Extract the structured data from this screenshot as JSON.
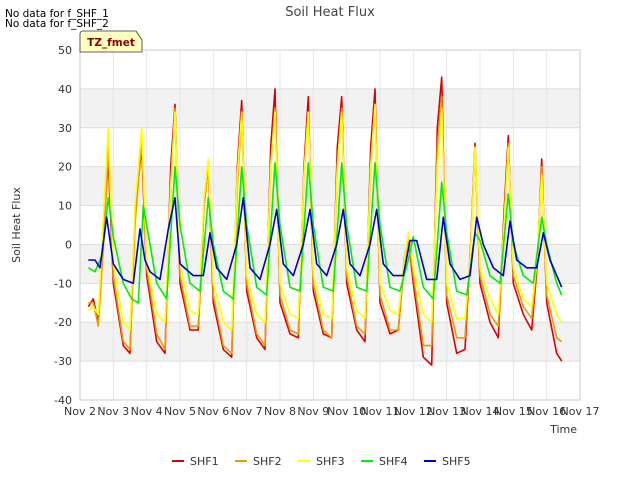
{
  "notes": [
    "No data for f_SHF_1",
    "No data for f_SHF_2"
  ],
  "chart_data": {
    "type": "line",
    "title": "Soil Heat Flux",
    "xlabel": "Time",
    "ylabel": "Soil Heat Flux",
    "badge": "TZ_fmet",
    "xlim": [
      2,
      17
    ],
    "ylim": [
      -40,
      50
    ],
    "xticks": [
      2,
      3,
      4,
      5,
      6,
      7,
      8,
      9,
      10,
      11,
      12,
      13,
      14,
      15,
      16,
      17
    ],
    "xtick_labels": [
      "Nov 2",
      "Nov 3",
      "Nov 4",
      "Nov 5",
      "Nov 6",
      "Nov 7",
      "Nov 8",
      "Nov 9",
      "Nov 10",
      "Nov 11",
      "Nov 12",
      "Nov 13",
      "Nov 14",
      "Nov 15",
      "Nov 16",
      "Nov 17"
    ],
    "yticks": [
      -40,
      -30,
      -20,
      -10,
      0,
      10,
      20,
      30,
      40,
      50
    ],
    "ytick_labels": [
      "-40",
      "-30",
      "-20",
      "-10",
      "0",
      "10",
      "20",
      "30",
      "40",
      "50"
    ],
    "grid": "horizontal bands",
    "legend_position": "bottom-center",
    "series": [
      {
        "name": "SHF1",
        "color": "#dd0000",
        "x": [
          2.25,
          2.4,
          2.55,
          2.72,
          2.85,
          3.0,
          3.3,
          3.5,
          3.65,
          3.85,
          4.0,
          4.3,
          4.55,
          4.72,
          4.85,
          5.0,
          5.3,
          5.55,
          5.72,
          5.85,
          6.0,
          6.3,
          6.55,
          6.72,
          6.85,
          7.0,
          7.3,
          7.55,
          7.72,
          7.85,
          8.0,
          8.3,
          8.55,
          8.72,
          8.85,
          9.0,
          9.3,
          9.55,
          9.72,
          9.85,
          10.0,
          10.3,
          10.55,
          10.72,
          10.85,
          11.0,
          11.3,
          11.55,
          11.72,
          11.85,
          12.0,
          12.3,
          12.55,
          12.72,
          12.85,
          13.0,
          13.3,
          13.55,
          13.72,
          13.85,
          14.0,
          14.3,
          14.55,
          14.72,
          14.85,
          15.0,
          15.3,
          15.55,
          15.72,
          15.85,
          16.0,
          16.3,
          16.45
        ],
        "y": [
          -16,
          -14,
          -20,
          5,
          22,
          -10,
          -26,
          -28,
          8,
          25,
          -8,
          -25,
          -28,
          20,
          36,
          -10,
          -22,
          -22,
          10,
          20,
          -15,
          -27,
          -29,
          20,
          37,
          -12,
          -24,
          -27,
          25,
          40,
          -15,
          -23,
          -24,
          20,
          38,
          -12,
          -23,
          -24,
          25,
          38,
          -10,
          -22,
          -25,
          25,
          40,
          -15,
          -23,
          -22,
          -5,
          2,
          -10,
          -29,
          -31,
          30,
          43,
          -15,
          -28,
          -27,
          0,
          26,
          -10,
          -20,
          -24,
          8,
          28,
          -10,
          -18,
          -22,
          -5,
          22,
          -15,
          -28,
          -30
        ]
      },
      {
        "name": "SHF2",
        "color": "#ee9900",
        "x": [
          2.25,
          2.4,
          2.55,
          2.72,
          2.85,
          3.0,
          3.3,
          3.5,
          3.65,
          3.85,
          4.0,
          4.3,
          4.55,
          4.72,
          4.85,
          5.0,
          5.3,
          5.55,
          5.72,
          5.85,
          6.0,
          6.3,
          6.55,
          6.72,
          6.85,
          7.0,
          7.3,
          7.55,
          7.72,
          7.85,
          8.0,
          8.3,
          8.55,
          8.72,
          8.85,
          9.0,
          9.3,
          9.55,
          9.72,
          9.85,
          10.0,
          10.3,
          10.55,
          10.72,
          10.85,
          11.0,
          11.3,
          11.55,
          11.72,
          11.85,
          12.0,
          12.3,
          12.55,
          12.72,
          12.85,
          13.0,
          13.3,
          13.55,
          13.72,
          13.85,
          14.0,
          14.3,
          14.55,
          14.72,
          14.85,
          15.0,
          15.3,
          15.55,
          15.72,
          15.85,
          16.0,
          16.3,
          16.45
        ],
        "y": [
          -15,
          -15,
          -21,
          2,
          25,
          -8,
          -25,
          -27,
          5,
          27,
          -6,
          -23,
          -27,
          15,
          35,
          -8,
          -21,
          -21,
          10,
          20,
          -13,
          -26,
          -28,
          15,
          33,
          -10,
          -23,
          -26,
          20,
          35,
          -13,
          -22,
          -23,
          18,
          34,
          -10,
          -22,
          -24,
          20,
          35,
          -8,
          -21,
          -23,
          20,
          36,
          -13,
          -22,
          -22,
          -4,
          2,
          -8,
          -26,
          -26,
          25,
          38,
          -13,
          -24,
          -24,
          0,
          25,
          -8,
          -18,
          -21,
          5,
          26,
          -8,
          -16,
          -19,
          -4,
          20,
          -13,
          -24,
          -25
        ]
      },
      {
        "name": "SHF3",
        "color": "#ffff00",
        "x": [
          2.25,
          2.4,
          2.55,
          2.72,
          2.85,
          3.0,
          3.3,
          3.5,
          3.65,
          3.85,
          4.0,
          4.3,
          4.55,
          4.72,
          4.85,
          5.0,
          5.3,
          5.55,
          5.72,
          5.85,
          6.0,
          6.3,
          6.55,
          6.72,
          6.85,
          7.0,
          7.3,
          7.55,
          7.72,
          7.85,
          8.0,
          8.3,
          8.55,
          8.72,
          8.85,
          9.0,
          9.3,
          9.55,
          9.72,
          9.85,
          10.0,
          10.3,
          10.55,
          10.72,
          10.85,
          11.0,
          11.3,
          11.55,
          11.72,
          11.85,
          12.0,
          12.3,
          12.55,
          12.72,
          12.85,
          13.0,
          13.3,
          13.55,
          13.72,
          13.85,
          14.0,
          14.3,
          14.55,
          14.72,
          14.85,
          15.0,
          15.3,
          15.55,
          15.72,
          15.85,
          16.0,
          16.3,
          16.45
        ],
        "y": [
          -17,
          -16,
          -18,
          10,
          30,
          -5,
          -20,
          -22,
          10,
          30,
          -5,
          -18,
          -20,
          15,
          34,
          -5,
          -17,
          -18,
          12,
          22,
          -10,
          -20,
          -22,
          18,
          34,
          -8,
          -18,
          -20,
          20,
          34,
          -10,
          -18,
          -19,
          18,
          34,
          -8,
          -18,
          -19,
          20,
          34,
          -6,
          -17,
          -19,
          20,
          36,
          -10,
          -17,
          -18,
          -5,
          3,
          -6,
          -18,
          -20,
          20,
          35,
          -10,
          -19,
          -19,
          -2,
          25,
          -6,
          -14,
          -18,
          5,
          25,
          -6,
          -14,
          -16,
          -3,
          18,
          -10,
          -18,
          -20
        ]
      },
      {
        "name": "SHF4",
        "color": "#00ee00",
        "x": [
          2.25,
          2.45,
          2.65,
          2.85,
          3.0,
          3.3,
          3.55,
          3.75,
          3.9,
          4.1,
          4.3,
          4.6,
          4.85,
          5.0,
          5.3,
          5.6,
          5.85,
          6.0,
          6.3,
          6.6,
          6.85,
          7.0,
          7.3,
          7.6,
          7.85,
          8.0,
          8.3,
          8.6,
          8.85,
          9.0,
          9.3,
          9.6,
          9.85,
          10.0,
          10.3,
          10.6,
          10.85,
          11.0,
          11.3,
          11.6,
          11.85,
          12.0,
          12.3,
          12.6,
          12.85,
          13.0,
          13.3,
          13.6,
          13.85,
          14.0,
          14.3,
          14.6,
          14.85,
          15.0,
          15.3,
          15.6,
          15.85,
          16.0,
          16.3,
          16.45
        ],
        "y": [
          -6,
          -7,
          -3,
          12,
          2,
          -10,
          -14,
          -15,
          10,
          0,
          -10,
          -14,
          20,
          5,
          -10,
          -12,
          12,
          0,
          -12,
          -14,
          20,
          5,
          -11,
          -13,
          21,
          5,
          -11,
          -12,
          21,
          5,
          -11,
          -12,
          21,
          5,
          -11,
          -12,
          21,
          5,
          -11,
          -12,
          -4,
          2,
          -11,
          -14,
          16,
          3,
          -12,
          -13,
          3,
          1,
          -8,
          -10,
          13,
          0,
          -8,
          -10,
          7,
          0,
          -10,
          -13
        ]
      },
      {
        "name": "SHF5",
        "color": "#0000cc",
        "x": [
          2.25,
          2.45,
          2.6,
          2.8,
          3.0,
          3.3,
          3.6,
          3.8,
          3.95,
          4.1,
          4.4,
          4.65,
          4.85,
          5.0,
          5.4,
          5.7,
          5.9,
          6.1,
          6.4,
          6.7,
          6.9,
          7.1,
          7.4,
          7.7,
          7.9,
          8.1,
          8.4,
          8.7,
          8.9,
          9.1,
          9.4,
          9.7,
          9.9,
          10.1,
          10.4,
          10.7,
          10.9,
          11.1,
          11.4,
          11.7,
          11.9,
          12.1,
          12.4,
          12.7,
          12.9,
          13.1,
          13.4,
          13.7,
          13.9,
          14.1,
          14.4,
          14.7,
          14.9,
          15.1,
          15.4,
          15.7,
          15.9,
          16.1,
          16.3,
          16.45
        ],
        "y": [
          -4,
          -4,
          -6,
          7,
          -5,
          -9,
          -10,
          4,
          -4,
          -7,
          -9,
          4,
          12,
          -5,
          -8,
          -8,
          3,
          -6,
          -9,
          0,
          12,
          -6,
          -9,
          0,
          9,
          -5,
          -8,
          0,
          9,
          -5,
          -8,
          0,
          9,
          -5,
          -8,
          0,
          9,
          -5,
          -8,
          -8,
          1,
          1,
          -9,
          -9,
          7,
          -5,
          -9,
          -8,
          7,
          0,
          -6,
          -8,
          6,
          -4,
          -6,
          -6,
          3,
          -4,
          -8,
          -11
        ]
      }
    ]
  }
}
